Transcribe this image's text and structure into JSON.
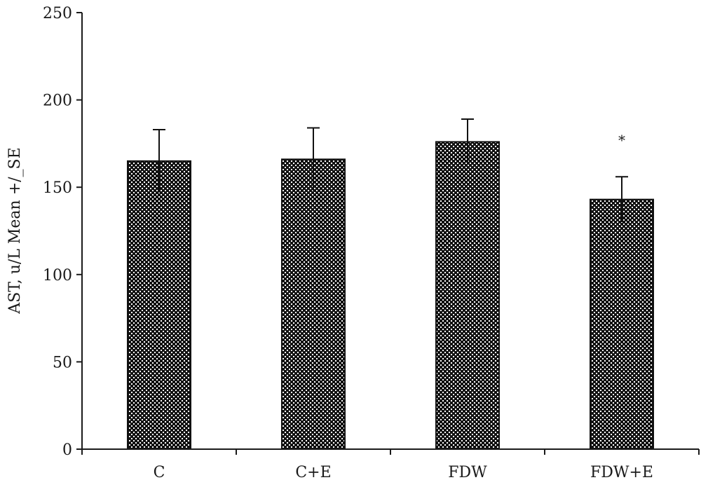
{
  "chart_data": {
    "type": "bar",
    "title": "",
    "xlabel": "",
    "ylabel": "AST, u/L Mean +/_SE",
    "categories": [
      "C",
      "C+E",
      "FDW",
      "FDW+E"
    ],
    "values": [
      165,
      166,
      176,
      143
    ],
    "errors": [
      18,
      18,
      13,
      13
    ],
    "annotations": [
      "",
      "",
      "",
      "*"
    ],
    "ylim": [
      0,
      250
    ],
    "yticks": [
      0,
      50,
      100,
      150,
      200,
      250
    ],
    "grid": false,
    "legend": "none",
    "bar_fill": "dotted-pattern",
    "bar_color": "#111111",
    "dot_color": "#ffffff"
  }
}
